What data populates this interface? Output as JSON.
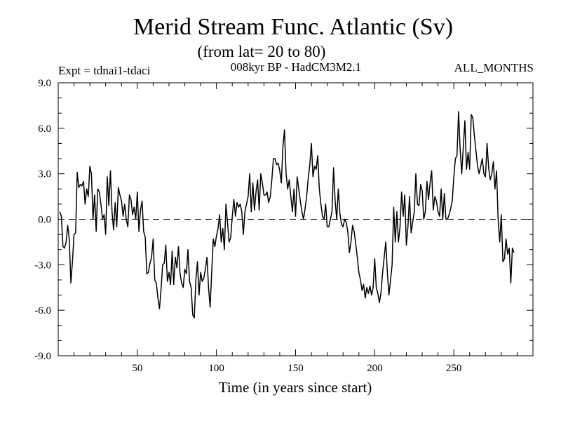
{
  "chart_data": {
    "type": "line",
    "title": "Merid Stream Func. Atlantic (Sv)",
    "subtitle": "(from lat= 20 to 80)",
    "annotations": {
      "left": "Expt = tdnai1-tdaci",
      "center": "008kyr BP - HadCM3M2.1",
      "right": "ALL_MONTHS"
    },
    "xlabel": "Time (in years since start)",
    "ylabel": "",
    "xlim": [
      0,
      300
    ],
    "ylim": [
      -9.0,
      9.0
    ],
    "xticks": [
      50,
      100,
      150,
      200,
      250
    ],
    "xtick_labels": [
      "50",
      "100",
      "150",
      "200",
      "250"
    ],
    "yticks": [
      -9,
      -6,
      -3,
      0,
      3,
      6,
      9
    ],
    "ytick_labels": [
      "-9.0",
      "-6.0",
      "-3.0",
      "0.0",
      "3.0",
      "6.0",
      "9.0"
    ],
    "reference_line": {
      "y": 0,
      "style": "dashed"
    },
    "series": [
      {
        "name": "Merid Stream Func. Atlantic",
        "x_start": 1,
        "x_step": 1,
        "values": [
          0.5,
          0.2,
          -1.8,
          -1.9,
          -1.5,
          -0.4,
          -1.3,
          -4.2,
          -2.8,
          -1.0,
          -0.9,
          3.1,
          2.1,
          2.3,
          2.2,
          2.5,
          1.0,
          2.0,
          1.5,
          3.5,
          3.0,
          0.0,
          1.6,
          -0.8,
          2.0,
          1.8,
          1.0,
          0.0,
          0.3,
          -1.0,
          2.8,
          0.9,
          3.2,
          0.5,
          -0.7,
          1.1,
          -0.5,
          2.1,
          1.6,
          1.2,
          0.2,
          1.0,
          0.0,
          -0.5,
          1.6,
          1.3,
          0.3,
          0.8,
          0.0,
          1.8,
          -0.8,
          0.6,
          1.2,
          -0.8,
          -1.2,
          -3.6,
          -3.5,
          -2.9,
          -2.5,
          -1.3,
          -4.0,
          -4.2,
          -5.2,
          -5.9,
          -4.6,
          -3.0,
          -2.9,
          -1.7,
          -4.1,
          -3.5,
          -4.3,
          -2.1,
          -4.3,
          -2.5,
          -3.2,
          -1.8,
          -3.6,
          -4.2,
          -4.5,
          -3.3,
          -3.6,
          -2.0,
          -4.1,
          -4.5,
          -6.3,
          -6.5,
          -4.0,
          -2.8,
          -5.0,
          -3.5,
          -4.1,
          -3.9,
          -3.3,
          -2.5,
          -4.5,
          -5.8,
          -3.5,
          -1.3,
          -1.8,
          -1.1,
          -0.6,
          0.3,
          -1.5,
          -0.6,
          -2.0,
          1.0,
          -0.2,
          -1.5,
          -1.2,
          0.2,
          1.3,
          0.2,
          1.1,
          0.8,
          1.0,
          0.5,
          -1.0,
          0.5,
          1.0,
          1.5,
          3.0,
          0.5,
          2.4,
          0.6,
          1.8,
          2.6,
          0.6,
          3.0,
          2.4,
          1.6,
          1.6,
          1.8,
          1.1,
          1.5,
          2.6,
          4.0,
          4.0,
          3.6,
          3.7,
          3.2,
          2.4,
          4.8,
          5.9,
          3.0,
          2.0,
          2.6,
          1.5,
          0.5,
          2.0,
          0.2,
          2.8,
          2.0,
          1.2,
          0.5,
          0.0,
          0.7,
          1.5,
          2.7,
          3.6,
          5.0,
          2.8,
          3.5,
          3.3,
          4.2,
          2.0,
          1.0,
          0.2,
          0.0,
          1.0,
          -0.5,
          -0.5,
          0.0,
          0.5,
          3.4,
          1.2,
          0.0,
          2.0,
          0.4,
          -0.3,
          -0.5,
          0.0,
          -0.2,
          -0.8,
          -2.2,
          -1.5,
          -0.4,
          -0.8,
          -1.6,
          -2.5,
          -3.5,
          -4.0,
          -4.7,
          -4.3,
          -5.2,
          -4.5,
          -4.9,
          -4.4,
          -5.0,
          -4.5,
          -2.6,
          -4.5,
          -4.9,
          -5.5,
          -4.8,
          -3.5,
          -2.5,
          -1.5,
          -3.5,
          -5.0,
          -4.0,
          -3.0,
          0.8,
          -1.5,
          0.5,
          -1.5,
          -0.5,
          1.8,
          0.2,
          1.6,
          -1.7,
          -0.5,
          1.5,
          -0.9,
          -0.2,
          0.5,
          3.0,
          1.0,
          0.9,
          2.3,
          1.9,
          0.0,
          0.5,
          2.5,
          1.3,
          2.4,
          3.2,
          0.6,
          1.5,
          1.2,
          0.5,
          0.2,
          2.0,
          0.0,
          1.7,
          0.0,
          0.0,
          0.3,
          0.7,
          1.2,
          2.8,
          4.0,
          4.2,
          7.1,
          4.6,
          3.0,
          4.8,
          6.5,
          3.3,
          4.4,
          3.3,
          6.9,
          6.7,
          5.5,
          4.5,
          3.5,
          3.0,
          3.5,
          4.0,
          3.0,
          2.8,
          5.0,
          3.4,
          2.6,
          3.0,
          3.8,
          2.0,
          3.2,
          0.0,
          -1.5,
          0.3,
          -2.8,
          -2.6,
          -1.3,
          -2.3,
          -1.9,
          -4.2,
          -1.9,
          -2.2
        ]
      }
    ]
  }
}
